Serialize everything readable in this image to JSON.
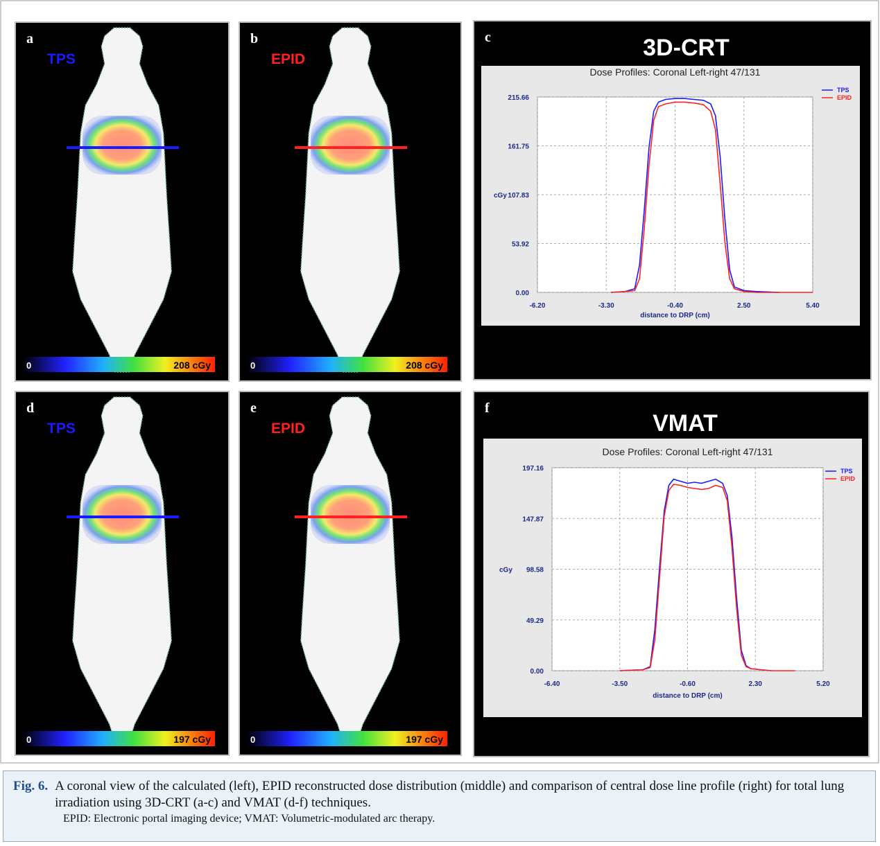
{
  "panels": [
    {
      "letter": "a",
      "label": "TPS",
      "scale_min": "0",
      "scale_max": "208 cGy"
    },
    {
      "letter": "b",
      "label": "EPID",
      "scale_min": "0",
      "scale_max": "208 cGy"
    },
    {
      "letter": "d",
      "label": "TPS",
      "scale_min": "0",
      "scale_max": "197 cGy"
    },
    {
      "letter": "e",
      "label": "EPID",
      "scale_min": "0",
      "scale_max": "197 cGy"
    }
  ],
  "chart_letters": [
    "c",
    "f"
  ],
  "chart_data": [
    {
      "type": "line",
      "title": "3D-CRT",
      "subtitle": "Dose Profiles: Coronal Left-right 47/131",
      "ylabel": "cGy",
      "xlabel": "distance to DRP (cm)",
      "x": [
        -3.1,
        -2.5,
        -2.1,
        -1.9,
        -1.7,
        -1.5,
        -1.3,
        -1.1,
        -0.8,
        -0.4,
        0,
        0.4,
        0.8,
        1.1,
        1.3,
        1.5,
        1.7,
        1.9,
        2.1,
        2.5,
        3.0,
        4.0,
        5.4
      ],
      "series": [
        {
          "name": "TPS",
          "color": "#1a1aff",
          "values": [
            0,
            1,
            4,
            30,
            90,
            160,
            200,
            210,
            213,
            214,
            214,
            213,
            212,
            208,
            195,
            150,
            80,
            25,
            6,
            2,
            1,
            0,
            null
          ]
        },
        {
          "name": "EPID",
          "color": "#ff2020",
          "values": [
            0,
            1,
            2,
            15,
            70,
            140,
            190,
            205,
            208,
            210,
            210,
            209,
            207,
            200,
            180,
            120,
            55,
            15,
            4,
            1,
            0,
            0,
            0
          ]
        }
      ],
      "xlim": [
        -6.2,
        5.4
      ],
      "ylim": [
        0,
        215.66
      ],
      "xticks": [
        {
          "value": -6.2,
          "label": "-6.20"
        },
        {
          "value": -3.3,
          "label": "-3.30"
        },
        {
          "value": -0.4,
          "label": "-0.40"
        },
        {
          "value": 2.5,
          "label": "2.50"
        },
        {
          "value": 5.4,
          "label": "5.40"
        }
      ],
      "yticks": [
        {
          "value": 0,
          "label": "0.00"
        },
        53.92,
        107.83,
        161.75,
        215.66
      ],
      "grid": true,
      "legend": "upper right"
    },
    {
      "type": "line",
      "title": "VMAT",
      "subtitle": "Dose Profiles: Coronal Left-right 47/131",
      "ylabel": "cGy",
      "xlabel": "distance to DRP (cm)",
      "x": [
        -3.5,
        -2.5,
        -2.2,
        -2.0,
        -1.8,
        -1.6,
        -1.4,
        -1.2,
        -0.9,
        -0.6,
        -0.3,
        0.0,
        0.3,
        0.6,
        0.9,
        1.1,
        1.3,
        1.5,
        1.7,
        1.9,
        2.1,
        2.5,
        3.0,
        4.0
      ],
      "series": [
        {
          "name": "TPS",
          "color": "#1a1aff",
          "values": [
            0,
            1,
            4,
            40,
            100,
            155,
            180,
            186,
            184,
            182,
            183,
            182,
            184,
            186,
            182,
            170,
            130,
            70,
            20,
            5,
            2,
            1,
            0,
            null
          ]
        },
        {
          "name": "EPID",
          "color": "#ff2020",
          "values": [
            0,
            1,
            3,
            30,
            90,
            150,
            175,
            181,
            180,
            178,
            177,
            176,
            177,
            180,
            178,
            165,
            120,
            60,
            15,
            4,
            2,
            1,
            0,
            0
          ]
        }
      ],
      "xlim": [
        -6.4,
        5.2
      ],
      "ylim": [
        0,
        197.16
      ],
      "xticks": [
        {
          "value": -6.4,
          "label": "-6.40"
        },
        {
          "value": -3.5,
          "label": "-3.50"
        },
        {
          "value": -0.6,
          "label": "-0.60"
        },
        {
          "value": 2.3,
          "label": "2.30"
        },
        {
          "value": 5.2,
          "label": "5.20"
        }
      ],
      "yticks": [
        {
          "value": 0,
          "label": "0.00"
        },
        49.29,
        98.58,
        147.87,
        197.16
      ],
      "grid": true,
      "legend": "upper right"
    }
  ],
  "caption": {
    "label": "Fig. 6.",
    "text": "A coronal view of the calculated (left), EPID reconstructed dose distribution (middle) and comparison of central dose line profile (right) for total lung irradiation using 3D-CRT (a-c) and VMAT (d-f) techniques.",
    "footnote": "EPID: Electronic portal imaging device; VMAT: Volumetric-modulated arc therapy."
  }
}
